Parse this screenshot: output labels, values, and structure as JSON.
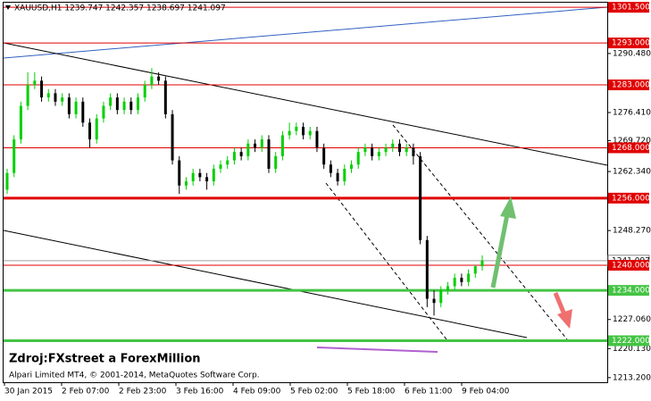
{
  "chart_data": {
    "type": "candlestick",
    "title": "XAUUSD,H1  1239.747 1242.357 1238.697 1241.097",
    "watermark": "Zdroj:FXstreet a ForexMillion",
    "copyright": "Alpari Limited MT4, © 2001-2014, MetaQuotes Software Corp.",
    "up_color": "#00d000",
    "down_color": "#000000",
    "candles": [
      [
        1258,
        1263,
        1257,
        1262
      ],
      [
        1262,
        1271,
        1261,
        1270
      ],
      [
        1270,
        1279,
        1269,
        1278
      ],
      [
        1278,
        1286,
        1277,
        1283
      ],
      [
        1283,
        1286,
        1282,
        1284
      ],
      [
        1284,
        1285,
        1279,
        1280
      ],
      [
        1280,
        1282,
        1279,
        1281
      ],
      [
        1281,
        1282,
        1278,
        1279
      ],
      [
        1279,
        1281,
        1278,
        1280
      ],
      [
        1280,
        1281,
        1275,
        1276
      ],
      [
        1276,
        1280,
        1275,
        1279
      ],
      [
        1279,
        1280,
        1273,
        1274
      ],
      [
        1274,
        1275,
        1268,
        1270
      ],
      [
        1270,
        1276,
        1269,
        1275
      ],
      [
        1275,
        1279,
        1274,
        1278
      ],
      [
        1278,
        1281,
        1277,
        1280
      ],
      [
        1280,
        1281,
        1276,
        1277
      ],
      [
        1277,
        1280,
        1276,
        1279
      ],
      [
        1279,
        1280,
        1276,
        1277
      ],
      [
        1277,
        1281,
        1276,
        1280
      ],
      [
        1280,
        1284,
        1279,
        1283
      ],
      [
        1283,
        1287,
        1282,
        1285
      ],
      [
        1285,
        1286,
        1283,
        1284
      ],
      [
        1284,
        1285,
        1275,
        1276
      ],
      [
        1276,
        1277,
        1264,
        1265
      ],
      [
        1265,
        1266,
        1257,
        1259
      ],
      [
        1259,
        1261,
        1258,
        1260
      ],
      [
        1260,
        1263,
        1259,
        1262
      ],
      [
        1262,
        1263,
        1260,
        1261
      ],
      [
        1261,
        1262,
        1258,
        1260
      ],
      [
        1260,
        1264,
        1259,
        1263
      ],
      [
        1263,
        1265,
        1262,
        1264
      ],
      [
        1264,
        1266,
        1263,
        1265
      ],
      [
        1265,
        1268,
        1264,
        1267
      ],
      [
        1267,
        1268,
        1265,
        1266
      ],
      [
        1266,
        1270,
        1265,
        1269
      ],
      [
        1269,
        1270,
        1267,
        1268
      ],
      [
        1268,
        1271,
        1267,
        1270
      ],
      [
        1270,
        1271,
        1262,
        1263
      ],
      [
        1263,
        1267,
        1262,
        1266
      ],
      [
        1266,
        1272,
        1265,
        1271
      ],
      [
        1271,
        1274,
        1270,
        1272
      ],
      [
        1272,
        1274,
        1271,
        1273
      ],
      [
        1273,
        1274,
        1270,
        1271
      ],
      [
        1271,
        1273,
        1270,
        1272
      ],
      [
        1272,
        1273,
        1267,
        1268
      ],
      [
        1268,
        1269,
        1263,
        1264
      ],
      [
        1264,
        1265,
        1261,
        1262
      ],
      [
        1262,
        1263,
        1259,
        1260
      ],
      [
        1260,
        1264,
        1259,
        1263
      ],
      [
        1263,
        1265,
        1262,
        1264
      ],
      [
        1264,
        1268,
        1263,
        1267
      ],
      [
        1267,
        1269,
        1266,
        1268
      ],
      [
        1268,
        1269,
        1265,
        1266
      ],
      [
        1266,
        1268,
        1265,
        1267
      ],
      [
        1267,
        1269,
        1266,
        1268
      ],
      [
        1268,
        1270,
        1267,
        1269
      ],
      [
        1269,
        1270,
        1266,
        1267
      ],
      [
        1267,
        1269,
        1266,
        1268
      ],
      [
        1268,
        1269,
        1264,
        1266
      ],
      [
        1266,
        1267,
        1245,
        1246
      ],
      [
        1246,
        1247,
        1230,
        1232
      ],
      [
        1232,
        1234,
        1228,
        1231
      ],
      [
        1231,
        1235,
        1230,
        1234
      ],
      [
        1234,
        1236,
        1233,
        1235
      ],
      [
        1235,
        1238,
        1234,
        1237
      ],
      [
        1237,
        1238,
        1235,
        1236
      ],
      [
        1236,
        1239,
        1235,
        1238
      ],
      [
        1238,
        1240,
        1237,
        1239.747
      ],
      [
        1239.747,
        1242.357,
        1238.697,
        1241.097
      ]
    ],
    "time_labels": [
      "30 Jan 2015",
      "2 Feb 07:00",
      "2 Feb 23:00",
      "3 Feb 16:00",
      "4 Feb 09:00",
      "5 Feb 02:00",
      "5 Feb 18:00",
      "6 Feb 11:00",
      "9 Feb 04:00"
    ],
    "ylim": [
      1212.1,
      1302.6
    ],
    "yticks": [
      {
        "value": 1290.48,
        "label": "1290.480"
      },
      {
        "value": 1276.41,
        "label": "1276.410"
      },
      {
        "value": 1269.72,
        "label": "1269.720"
      },
      {
        "value": 1262.34,
        "label": "1262.340"
      },
      {
        "value": 1248.27,
        "label": "1248.270"
      },
      {
        "value": 1227.06,
        "label": "1227.060"
      },
      {
        "value": 1220.13,
        "label": "1220.130"
      },
      {
        "value": 1213.2,
        "label": "1213.200"
      }
    ],
    "current_price": {
      "value": 1241.097,
      "label": "1241.097"
    },
    "levels": [
      {
        "value": 1301.5,
        "label": "1301.500",
        "color": "#e00000",
        "width": 1
      },
      {
        "value": 1293,
        "label": "1293.000",
        "color": "#e00000",
        "width": 1
      },
      {
        "value": 1283,
        "label": "1283.000",
        "color": "#e00000",
        "width": 1
      },
      {
        "value": 1268,
        "label": "1268.000",
        "color": "#e00000",
        "width": 1
      },
      {
        "value": 1256,
        "label": "1256.000",
        "color": "#e00000",
        "width": 3
      },
      {
        "value": 1240,
        "label": "1240.000",
        "color": "#e00000",
        "width": 1
      },
      {
        "value": 1234,
        "label": "1234.000",
        "color": "#44c444",
        "width": 3
      },
      {
        "value": 1222,
        "label": "1222.000",
        "color": "#44c444",
        "width": 3
      }
    ]
  }
}
